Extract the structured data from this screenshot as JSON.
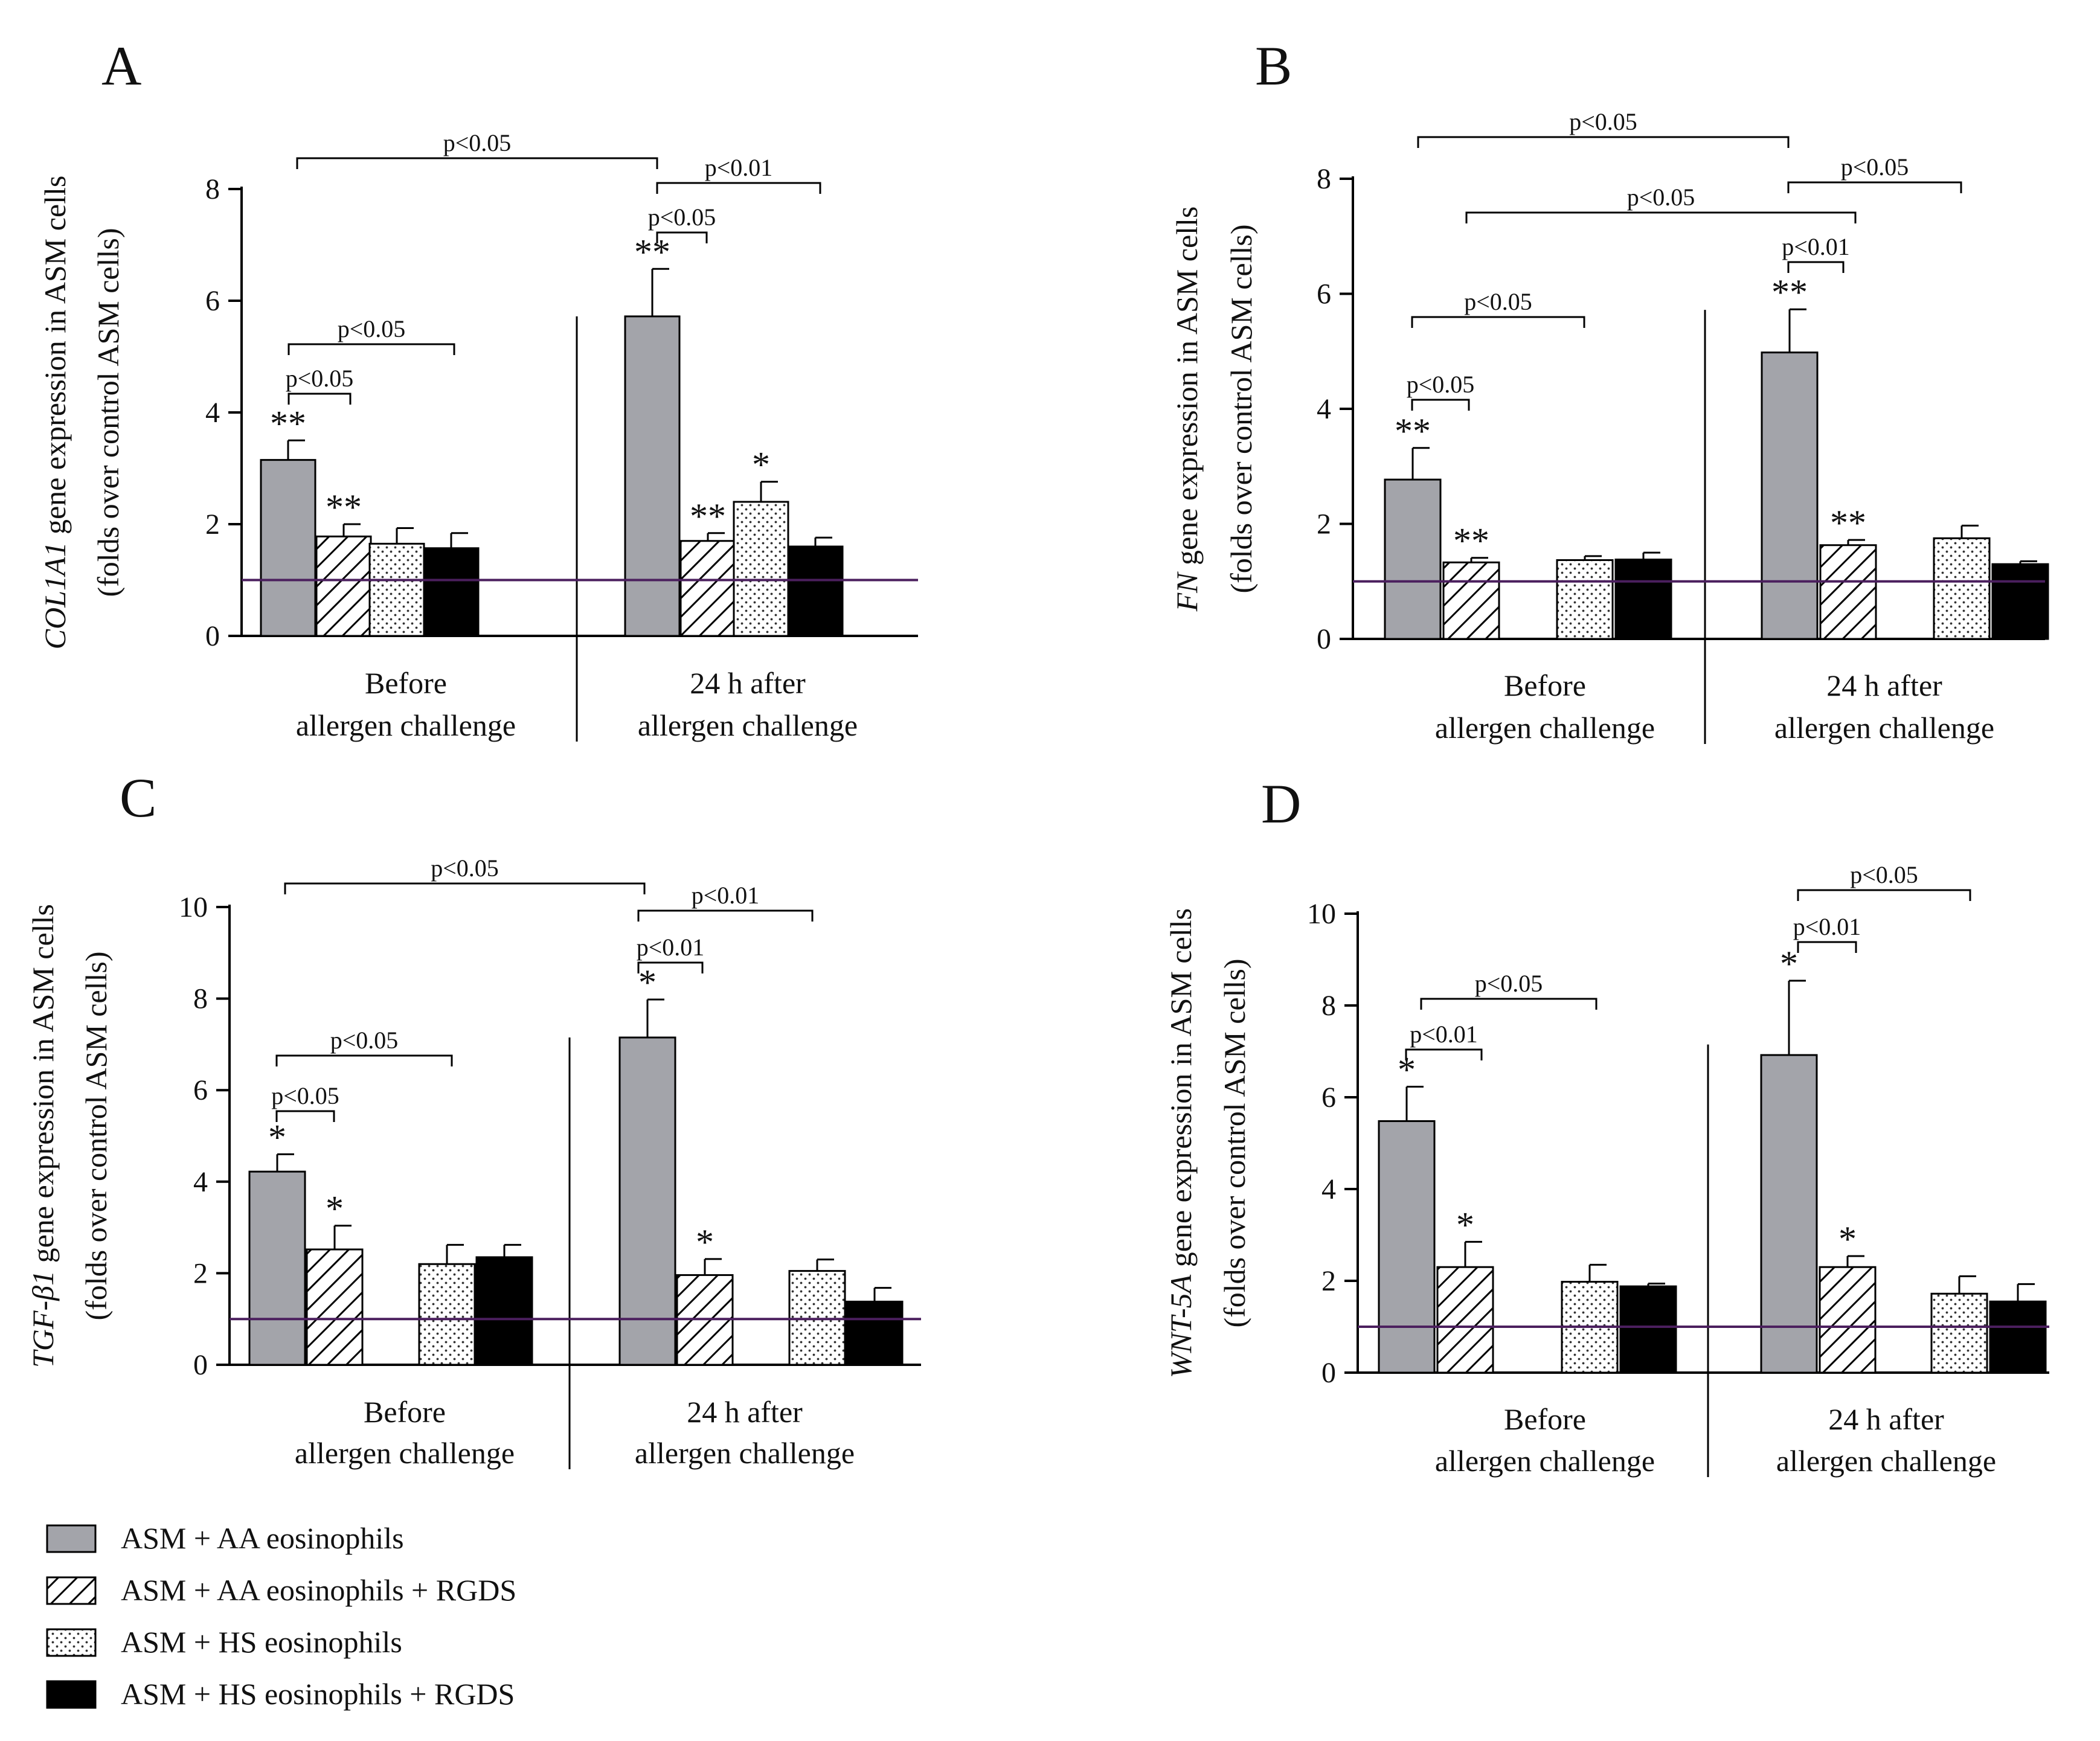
{
  "figure": {
    "reference_line": {
      "value": 1,
      "color": "#4b1f5e"
    },
    "colors": {
      "aa_fill": "#a3a4aa",
      "hs_rgds_fill": "#000000",
      "outline": "#000000",
      "background": "#ffffff"
    }
  },
  "legend": [
    {
      "key": "aa",
      "label": "ASM + AA eosinophils",
      "pattern": "solid-grey"
    },
    {
      "key": "aa_rgds",
      "label": "ASM + AA eosinophils + RGDS",
      "pattern": "diagonal-hatch"
    },
    {
      "key": "hs",
      "label": "ASM + HS eosinophils",
      "pattern": "dotted"
    },
    {
      "key": "hs_rgds",
      "label": "ASM + HS eosinophils + RGDS",
      "pattern": "solid-black"
    }
  ],
  "chart_data": [
    {
      "panel": "A",
      "type": "bar",
      "ylabel_gene": "COL1A1",
      "ylabel_rest": " gene expression in ASM cells",
      "ylabel_line2": "(folds over control ASM cells)",
      "ylim": [
        0,
        8
      ],
      "yticks": [
        "0",
        "2",
        "4",
        "6",
        "8"
      ],
      "groups": [
        {
          "line1": "Before",
          "line2": "allergen challenge"
        },
        {
          "line1": "24 h after",
          "line2": "allergen challenge"
        }
      ],
      "series": [
        {
          "name": "ASM + AA eosinophils",
          "values": [
            3.15,
            5.72
          ],
          "errors": [
            0.35,
            0.85
          ],
          "stars": [
            "**",
            "**"
          ]
        },
        {
          "name": "ASM + AA eosinophils + RGDS",
          "values": [
            1.78,
            1.7
          ],
          "errors": [
            0.22,
            0.14
          ],
          "stars": [
            "**",
            "**"
          ]
        },
        {
          "name": "ASM + HS eosinophils",
          "values": [
            1.65,
            2.4
          ],
          "errors": [
            0.28,
            0.36
          ],
          "stars": [
            "",
            "*"
          ]
        },
        {
          "name": "ASM + HS eosinophils + RGDS",
          "values": [
            1.57,
            1.6
          ],
          "errors": [
            0.27,
            0.16
          ],
          "stars": [
            "",
            ""
          ]
        }
      ],
      "brackets": [
        {
          "label": "p<0.05"
        },
        {
          "label": "p<0.05"
        },
        {
          "label": "p<0.05"
        },
        {
          "label": "p<0.01"
        },
        {
          "label": "p<0.05"
        }
      ]
    },
    {
      "panel": "B",
      "type": "bar",
      "ylabel_gene": "FN",
      "ylabel_rest": " gene expression in ASM cells",
      "ylabel_line2": "(folds over control ASM cells)",
      "ylim": [
        0,
        8
      ],
      "yticks": [
        "0",
        "2",
        "4",
        "6",
        "8"
      ],
      "groups": [
        {
          "line1": "Before",
          "line2": "allergen challenge"
        },
        {
          "line1": "24 h after",
          "line2": "allergen challenge"
        }
      ],
      "series": [
        {
          "name": "ASM + AA eosinophils",
          "values": [
            2.77,
            4.98
          ],
          "errors": [
            0.55,
            0.75
          ],
          "stars": [
            "**",
            "**"
          ]
        },
        {
          "name": "ASM + AA eosinophils + RGDS",
          "values": [
            1.33,
            1.63
          ],
          "errors": [
            0.08,
            0.09
          ],
          "stars": [
            "**",
            "**"
          ]
        },
        {
          "name": "ASM + HS eosinophils",
          "values": [
            1.37,
            1.75
          ],
          "errors": [
            0.07,
            0.22
          ],
          "stars": [
            "",
            ""
          ]
        },
        {
          "name": "ASM + HS eosinophils + RGDS",
          "values": [
            1.38,
            1.3
          ],
          "errors": [
            0.12,
            0.05
          ],
          "stars": [
            "",
            ""
          ]
        }
      ],
      "brackets": [
        {
          "label": "p<0.05"
        },
        {
          "label": "p<0.05"
        },
        {
          "label": "p<0.05"
        },
        {
          "label": "p<0.05"
        },
        {
          "label": "p<0.01"
        },
        {
          "label": "p<0.05"
        }
      ]
    },
    {
      "panel": "C",
      "type": "bar",
      "ylabel_gene": "TGF-β1",
      "ylabel_rest": " gene expression in ASM cells",
      "ylabel_line2": "(folds over control ASM cells)",
      "ylim": [
        0,
        10
      ],
      "yticks": [
        "0",
        "2",
        "4",
        "6",
        "8",
        "10"
      ],
      "groups": [
        {
          "line1": "Before",
          "line2": "allergen challenge"
        },
        {
          "line1": "24 h after",
          "line2": "allergen challenge"
        }
      ],
      "series": [
        {
          "name": "ASM + AA eosinophils",
          "values": [
            4.22,
            7.15
          ],
          "errors": [
            0.38,
            0.83
          ],
          "stars": [
            "*",
            "*"
          ]
        },
        {
          "name": "ASM + AA eosinophils + RGDS",
          "values": [
            2.52,
            1.96
          ],
          "errors": [
            0.52,
            0.35
          ],
          "stars": [
            "*",
            "*"
          ]
        },
        {
          "name": "ASM + HS eosinophils",
          "values": [
            2.2,
            2.05
          ],
          "errors": [
            0.42,
            0.25
          ],
          "stars": [
            "",
            ""
          ]
        },
        {
          "name": "ASM + HS eosinophils + RGDS",
          "values": [
            2.35,
            1.38
          ],
          "errors": [
            0.27,
            0.3
          ],
          "stars": [
            "",
            ""
          ]
        }
      ],
      "brackets": [
        {
          "label": "p<0.05"
        },
        {
          "label": "p<0.05"
        },
        {
          "label": "p<0.05"
        },
        {
          "label": "p<0.01"
        },
        {
          "label": "p<0.01"
        }
      ]
    },
    {
      "panel": "D",
      "type": "bar",
      "ylabel_gene": "WNT-5A",
      "ylabel_rest": " gene expression in ASM cells",
      "ylabel_line2": "(folds over control ASM cells)",
      "ylim": [
        0,
        10
      ],
      "yticks": [
        "0",
        "2",
        "4",
        "6",
        "8",
        "10"
      ],
      "groups": [
        {
          "line1": "Before",
          "line2": "allergen challenge"
        },
        {
          "line1": "24 h after",
          "line2": "allergen challenge"
        }
      ],
      "series": [
        {
          "name": "ASM + AA eosinophils",
          "values": [
            5.48,
            6.92
          ],
          "errors": [
            0.75,
            1.62
          ],
          "stars": [
            "*",
            "*"
          ]
        },
        {
          "name": "ASM + AA eosinophils + RGDS",
          "values": [
            2.3,
            2.3
          ],
          "errors": [
            0.55,
            0.24
          ],
          "stars": [
            "*",
            "*"
          ]
        },
        {
          "name": "ASM + HS eosinophils",
          "values": [
            1.98,
            1.72
          ],
          "errors": [
            0.37,
            0.38
          ],
          "stars": [
            "",
            ""
          ]
        },
        {
          "name": "ASM + HS eosinophils + RGDS",
          "values": [
            1.88,
            1.55
          ],
          "errors": [
            0.06,
            0.38
          ],
          "stars": [
            "",
            ""
          ]
        }
      ],
      "brackets": [
        {
          "label": "p<0.05"
        },
        {
          "label": "p<0.01"
        },
        {
          "label": "p<0.05"
        },
        {
          "label": "p<0.01"
        }
      ]
    }
  ]
}
